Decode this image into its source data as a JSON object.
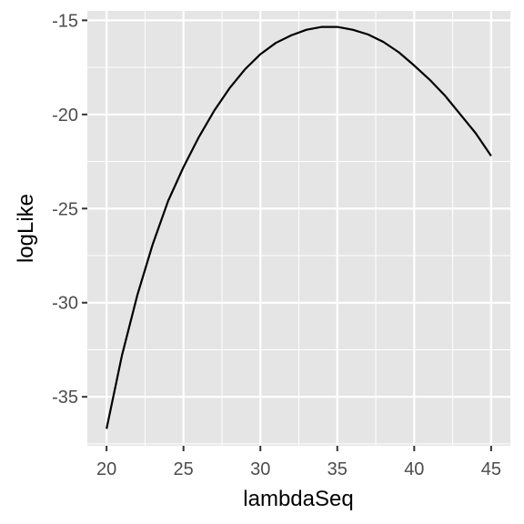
{
  "chart_data": {
    "type": "line",
    "xlabel": "lambdaSeq",
    "ylabel": "logLike",
    "xlim": [
      18.75,
      46.25
    ],
    "ylim": [
      -37.6,
      -14.5
    ],
    "x_ticks": [
      20,
      25,
      30,
      35,
      40,
      45
    ],
    "x_tick_labels": [
      "20",
      "25",
      "30",
      "35",
      "40",
      "45"
    ],
    "y_ticks": [
      -35,
      -30,
      -25,
      -20,
      -15
    ],
    "y_tick_labels": [
      "-35",
      "-30",
      "-25",
      "-20",
      "-15"
    ],
    "grid": true,
    "colors": {
      "panel": "#e5e5e5",
      "grid": "#ffffff",
      "line": "#000000"
    },
    "series": [
      {
        "x": [
          20,
          21,
          22,
          23,
          24,
          25,
          26,
          27,
          28,
          29,
          30,
          31,
          32,
          33,
          34,
          35,
          36,
          37,
          38,
          39,
          40,
          41,
          42,
          43,
          44,
          45
        ],
        "y": [
          -36.7,
          -32.8,
          -29.6,
          -26.9,
          -24.6,
          -22.8,
          -21.2,
          -19.8,
          -18.6,
          -17.6,
          -16.8,
          -16.2,
          -15.8,
          -15.5,
          -15.35,
          -15.35,
          -15.5,
          -15.75,
          -16.15,
          -16.7,
          -17.4,
          -18.15,
          -19.0,
          -20.0,
          -21.0,
          -22.2
        ]
      }
    ]
  }
}
